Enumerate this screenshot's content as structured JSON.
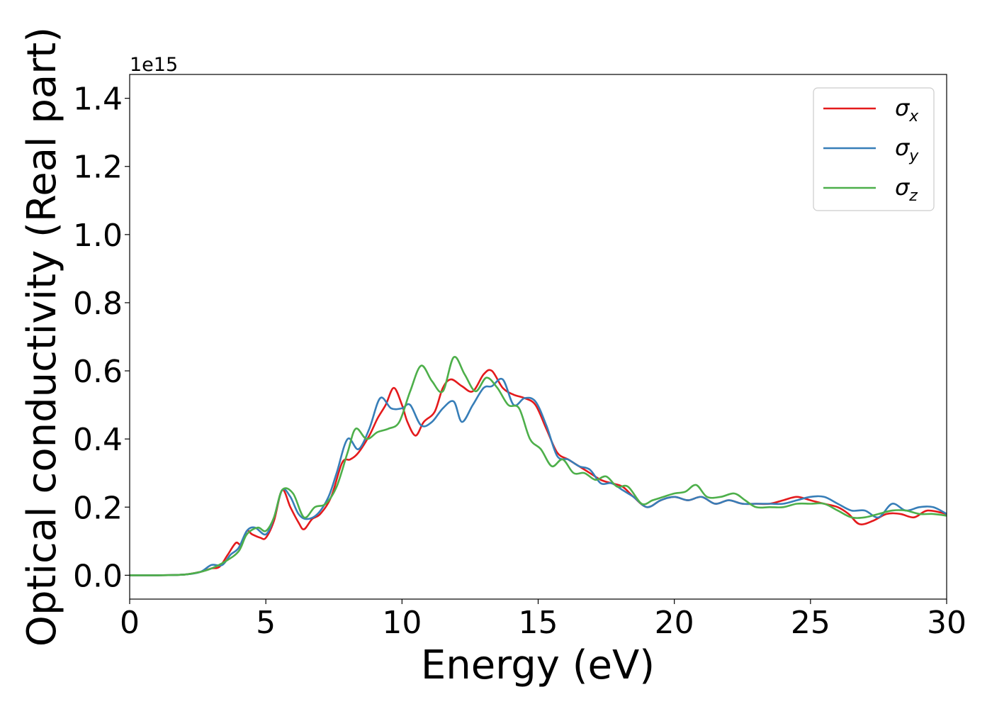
{
  "chart_data": {
    "type": "line",
    "title": "",
    "xlabel": "Energy (eV)",
    "ylabel": "Optical conductivity (Real part)",
    "y_offset_label": "1e15",
    "xlim": [
      0,
      30
    ],
    "ylim": [
      -0.07,
      1.47
    ],
    "xticks": [
      0,
      5,
      10,
      15,
      20,
      25,
      30
    ],
    "xtick_labels": [
      "0",
      "5",
      "10",
      "15",
      "20",
      "25",
      "30"
    ],
    "yticks": [
      0.0,
      0.2,
      0.4,
      0.6,
      0.8,
      1.0,
      1.2,
      1.4
    ],
    "ytick_labels": [
      "0.0",
      "0.2",
      "0.4",
      "0.6",
      "0.8",
      "1.0",
      "1.2",
      "1.4"
    ],
    "grid": false,
    "legend_position": "top-right",
    "series": [
      {
        "name": "σx",
        "name_base": "σ",
        "name_sub": "x",
        "color": "#e41a1c",
        "points": [
          [
            0,
            0
          ],
          [
            1,
            0
          ],
          [
            2,
            0.002
          ],
          [
            2.6,
            0.01
          ],
          [
            3,
            0.02
          ],
          [
            3.3,
            0.025
          ],
          [
            3.6,
            0.06
          ],
          [
            3.9,
            0.095
          ],
          [
            4.1,
            0.09
          ],
          [
            4.3,
            0.13
          ],
          [
            4.5,
            0.12
          ],
          [
            4.8,
            0.11
          ],
          [
            5,
            0.11
          ],
          [
            5.3,
            0.16
          ],
          [
            5.6,
            0.25
          ],
          [
            5.9,
            0.2
          ],
          [
            6.2,
            0.155
          ],
          [
            6.4,
            0.135
          ],
          [
            6.7,
            0.165
          ],
          [
            7,
            0.18
          ],
          [
            7.4,
            0.23
          ],
          [
            7.8,
            0.33
          ],
          [
            8.1,
            0.34
          ],
          [
            8.4,
            0.36
          ],
          [
            8.8,
            0.41
          ],
          [
            9.1,
            0.46
          ],
          [
            9.4,
            0.5
          ],
          [
            9.7,
            0.55
          ],
          [
            10,
            0.5
          ],
          [
            10.2,
            0.45
          ],
          [
            10.5,
            0.41
          ],
          [
            10.8,
            0.45
          ],
          [
            11.2,
            0.48
          ],
          [
            11.5,
            0.55
          ],
          [
            11.8,
            0.575
          ],
          [
            12.2,
            0.555
          ],
          [
            12.6,
            0.54
          ],
          [
            13,
            0.59
          ],
          [
            13.3,
            0.6
          ],
          [
            13.7,
            0.55
          ],
          [
            14.1,
            0.53
          ],
          [
            14.5,
            0.52
          ],
          [
            14.9,
            0.5
          ],
          [
            15.3,
            0.43
          ],
          [
            15.7,
            0.36
          ],
          [
            16.1,
            0.34
          ],
          [
            16.5,
            0.32
          ],
          [
            16.9,
            0.3
          ],
          [
            17.3,
            0.28
          ],
          [
            17.7,
            0.27
          ],
          [
            18.1,
            0.26
          ],
          [
            18.5,
            0.23
          ],
          [
            19,
            0.2
          ],
          [
            19.5,
            0.22
          ],
          [
            20,
            0.23
          ],
          [
            20.5,
            0.22
          ],
          [
            21,
            0.23
          ],
          [
            21.5,
            0.21
          ],
          [
            22,
            0.22
          ],
          [
            22.5,
            0.21
          ],
          [
            23,
            0.21
          ],
          [
            23.5,
            0.21
          ],
          [
            24,
            0.22
          ],
          [
            24.5,
            0.23
          ],
          [
            25,
            0.22
          ],
          [
            25.5,
            0.21
          ],
          [
            26,
            0.2
          ],
          [
            26.4,
            0.18
          ],
          [
            26.8,
            0.15
          ],
          [
            27.3,
            0.16
          ],
          [
            27.8,
            0.18
          ],
          [
            28.3,
            0.18
          ],
          [
            28.8,
            0.17
          ],
          [
            29.3,
            0.19
          ],
          [
            30,
            0.18
          ]
        ]
      },
      {
        "name": "σy",
        "name_base": "σ",
        "name_sub": "y",
        "color": "#377eb8",
        "points": [
          [
            0,
            0
          ],
          [
            1,
            0
          ],
          [
            2,
            0.002
          ],
          [
            2.6,
            0.01
          ],
          [
            3,
            0.03
          ],
          [
            3.4,
            0.03
          ],
          [
            3.7,
            0.06
          ],
          [
            4,
            0.08
          ],
          [
            4.3,
            0.13
          ],
          [
            4.6,
            0.14
          ],
          [
            5,
            0.12
          ],
          [
            5.3,
            0.17
          ],
          [
            5.6,
            0.25
          ],
          [
            5.9,
            0.23
          ],
          [
            6.2,
            0.18
          ],
          [
            6.5,
            0.165
          ],
          [
            6.9,
            0.18
          ],
          [
            7.3,
            0.23
          ],
          [
            7.6,
            0.3
          ],
          [
            8,
            0.4
          ],
          [
            8.4,
            0.37
          ],
          [
            8.8,
            0.43
          ],
          [
            9.2,
            0.52
          ],
          [
            9.6,
            0.49
          ],
          [
            10,
            0.49
          ],
          [
            10.3,
            0.5
          ],
          [
            10.7,
            0.44
          ],
          [
            11.1,
            0.45
          ],
          [
            11.5,
            0.49
          ],
          [
            11.9,
            0.51
          ],
          [
            12.2,
            0.45
          ],
          [
            12.6,
            0.5
          ],
          [
            13,
            0.55
          ],
          [
            13.3,
            0.555
          ],
          [
            13.7,
            0.575
          ],
          [
            14.1,
            0.5
          ],
          [
            14.5,
            0.52
          ],
          [
            14.9,
            0.51
          ],
          [
            15.3,
            0.44
          ],
          [
            15.7,
            0.35
          ],
          [
            16.1,
            0.34
          ],
          [
            16.5,
            0.32
          ],
          [
            16.9,
            0.31
          ],
          [
            17.3,
            0.27
          ],
          [
            17.7,
            0.27
          ],
          [
            18.1,
            0.25
          ],
          [
            18.5,
            0.23
          ],
          [
            19,
            0.2
          ],
          [
            19.5,
            0.22
          ],
          [
            20,
            0.23
          ],
          [
            20.5,
            0.22
          ],
          [
            21,
            0.23
          ],
          [
            21.5,
            0.21
          ],
          [
            22,
            0.22
          ],
          [
            22.5,
            0.21
          ],
          [
            23,
            0.21
          ],
          [
            23.5,
            0.21
          ],
          [
            24,
            0.21
          ],
          [
            24.5,
            0.22
          ],
          [
            25,
            0.23
          ],
          [
            25.5,
            0.23
          ],
          [
            26,
            0.21
          ],
          [
            26.5,
            0.19
          ],
          [
            27,
            0.19
          ],
          [
            27.5,
            0.17
          ],
          [
            28,
            0.21
          ],
          [
            28.5,
            0.19
          ],
          [
            29,
            0.2
          ],
          [
            29.5,
            0.2
          ],
          [
            30,
            0.18
          ]
        ]
      },
      {
        "name": "σz",
        "name_base": "σ",
        "name_sub": "z",
        "color": "#4daf4a",
        "points": [
          [
            0,
            0
          ],
          [
            1,
            0
          ],
          [
            2,
            0.002
          ],
          [
            2.6,
            0.01
          ],
          [
            3,
            0.02
          ],
          [
            3.5,
            0.04
          ],
          [
            4,
            0.07
          ],
          [
            4.3,
            0.12
          ],
          [
            4.7,
            0.14
          ],
          [
            5,
            0.13
          ],
          [
            5.3,
            0.17
          ],
          [
            5.6,
            0.25
          ],
          [
            6,
            0.24
          ],
          [
            6.4,
            0.17
          ],
          [
            6.8,
            0.2
          ],
          [
            7.2,
            0.21
          ],
          [
            7.6,
            0.26
          ],
          [
            8,
            0.36
          ],
          [
            8.3,
            0.43
          ],
          [
            8.7,
            0.4
          ],
          [
            9.1,
            0.42
          ],
          [
            9.5,
            0.43
          ],
          [
            9.9,
            0.45
          ],
          [
            10.3,
            0.54
          ],
          [
            10.7,
            0.615
          ],
          [
            11.1,
            0.57
          ],
          [
            11.5,
            0.54
          ],
          [
            11.9,
            0.64
          ],
          [
            12.3,
            0.59
          ],
          [
            12.7,
            0.54
          ],
          [
            13.1,
            0.58
          ],
          [
            13.5,
            0.55
          ],
          [
            13.9,
            0.5
          ],
          [
            14.3,
            0.49
          ],
          [
            14.7,
            0.4
          ],
          [
            15.1,
            0.37
          ],
          [
            15.5,
            0.32
          ],
          [
            15.9,
            0.34
          ],
          [
            16.3,
            0.3
          ],
          [
            16.7,
            0.3
          ],
          [
            17.1,
            0.28
          ],
          [
            17.5,
            0.29
          ],
          [
            17.9,
            0.26
          ],
          [
            18.3,
            0.26
          ],
          [
            18.8,
            0.21
          ],
          [
            19.2,
            0.22
          ],
          [
            19.6,
            0.23
          ],
          [
            20,
            0.24
          ],
          [
            20.4,
            0.245
          ],
          [
            20.8,
            0.265
          ],
          [
            21.2,
            0.23
          ],
          [
            21.7,
            0.23
          ],
          [
            22.2,
            0.24
          ],
          [
            22.6,
            0.22
          ],
          [
            23,
            0.2
          ],
          [
            23.5,
            0.2
          ],
          [
            24,
            0.2
          ],
          [
            24.5,
            0.21
          ],
          [
            25,
            0.21
          ],
          [
            25.5,
            0.21
          ],
          [
            26,
            0.19
          ],
          [
            26.5,
            0.17
          ],
          [
            27,
            0.17
          ],
          [
            27.5,
            0.18
          ],
          [
            28,
            0.19
          ],
          [
            28.5,
            0.19
          ],
          [
            29,
            0.18
          ],
          [
            29.5,
            0.18
          ],
          [
            30,
            0.175
          ]
        ]
      }
    ]
  }
}
